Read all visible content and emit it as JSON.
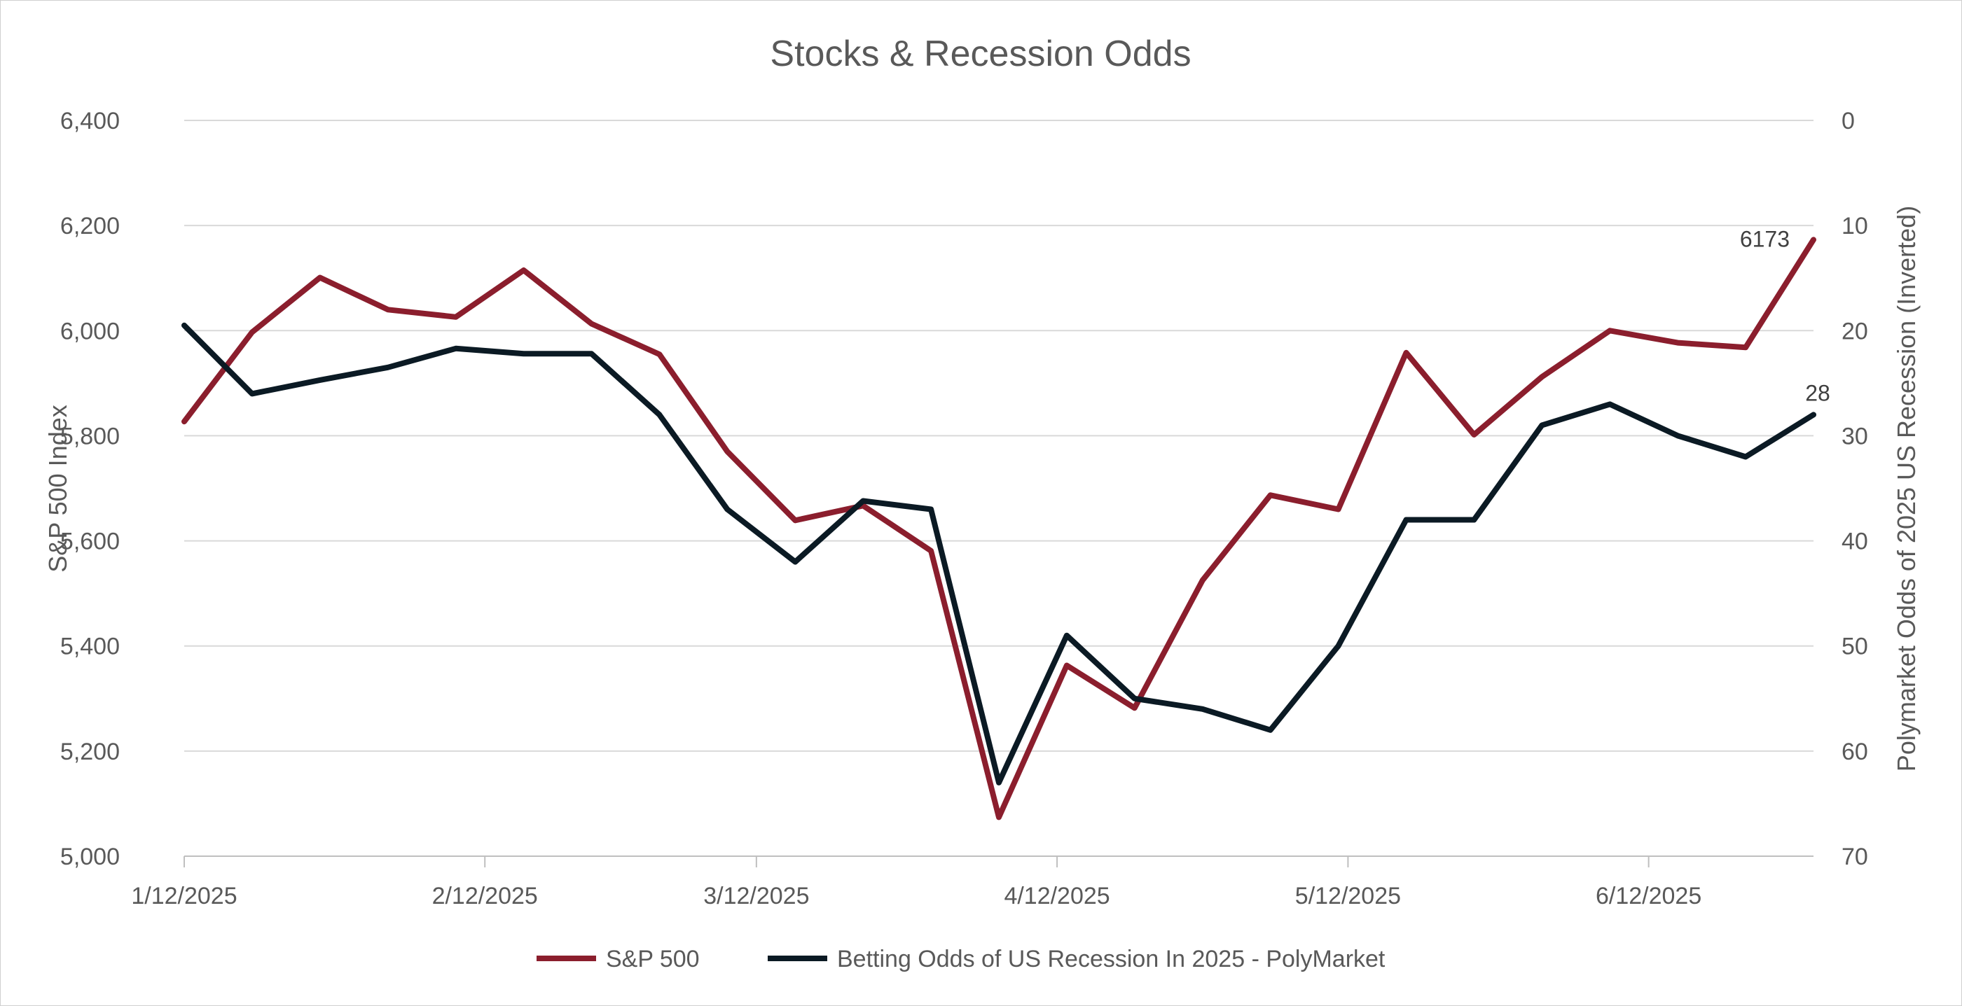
{
  "chart_data": {
    "type": "line",
    "title": "Stocks & Recession Odds",
    "ylabel": "S&P 500 Index",
    "y2label": "Polymarket Odds of 2025 US Recession (Inverted)",
    "ylim": [
      5000,
      6400
    ],
    "y2lim": [
      0,
      70
    ],
    "y2_inverted": true,
    "yticks": [
      "5,000",
      "5,200",
      "5,400",
      "5,600",
      "5,800",
      "6,000",
      "6,200",
      "6,400"
    ],
    "y2ticks": [
      "0",
      "10",
      "20",
      "30",
      "40",
      "50",
      "60",
      "70"
    ],
    "xticks": [
      "1/12/2025",
      "2/12/2025",
      "3/12/2025",
      "4/12/2025",
      "5/12/2025",
      "6/12/2025"
    ],
    "grid": true,
    "legend_position": "bottom",
    "x": [
      "2025-01-12",
      "2025-01-19",
      "2025-01-26",
      "2025-02-02",
      "2025-02-09",
      "2025-02-16",
      "2025-02-23",
      "2025-03-02",
      "2025-03-09",
      "2025-03-16",
      "2025-03-23",
      "2025-03-30",
      "2025-04-06",
      "2025-04-13",
      "2025-04-20",
      "2025-04-27",
      "2025-05-04",
      "2025-05-11",
      "2025-05-18",
      "2025-05-25",
      "2025-06-01",
      "2025-06-08",
      "2025-06-15",
      "2025-06-22",
      "2025-06-29"
    ],
    "series": [
      {
        "name": "S&P 500",
        "axis": "left",
        "color": "#8b1e2d",
        "values": [
          5827,
          5997,
          6101,
          6040,
          6026,
          6115,
          6013,
          5955,
          5770,
          5639,
          5667,
          5581,
          5074,
          5363,
          5282,
          5525,
          5687,
          5660,
          5958,
          5802,
          5912,
          6000,
          5977,
          5968,
          6173
        ]
      },
      {
        "name": "Betting Odds of US Recession In 2025 - PolyMarket",
        "axis": "right",
        "color": "#0b1a24",
        "values": [
          19.5,
          26,
          24.7,
          23.5,
          21.7,
          22.2,
          22.2,
          28,
          37,
          42,
          36.2,
          37,
          63,
          49,
          55,
          56,
          58,
          50,
          38,
          38,
          29,
          27,
          30,
          32,
          28
        ]
      }
    ],
    "annotations": [
      {
        "series": 0,
        "label": "6173"
      },
      {
        "series": 1,
        "label": "28"
      }
    ]
  }
}
